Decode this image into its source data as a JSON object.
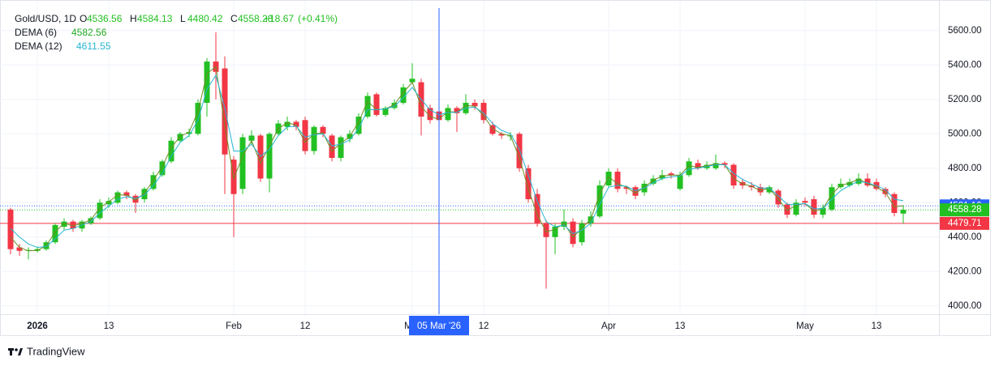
{
  "chart_data": {
    "type": "candlestick",
    "legend": {
      "title": "Gold/USD, 1D",
      "labels": [
        "O",
        "H",
        "L",
        "C"
      ],
      "change": {
        "value": 18.67,
        "label": "+18.67"
      },
      "change_pct": {
        "value": 0.41,
        "label": "(+0.41%)"
      }
    },
    "categories": [
      null,
      null,
      null,
      "2026",
      null,
      null,
      null,
      null,
      null,
      null,
      null,
      "13",
      null,
      null,
      null,
      null,
      null,
      null,
      null,
      null,
      null,
      null,
      null,
      null,
      null,
      "Feb",
      null,
      null,
      null,
      null,
      null,
      null,
      null,
      "12",
      null,
      null,
      null,
      null,
      null,
      null,
      null,
      null,
      null,
      null,
      null,
      "Mar",
      null,
      null,
      null,
      null,
      null,
      null,
      null,
      "12",
      null,
      null,
      null,
      null,
      null,
      null,
      null,
      null,
      null,
      null,
      null,
      null,
      null,
      "Apr",
      null,
      null,
      null,
      null,
      null,
      null,
      null,
      "13",
      null,
      null,
      null,
      null,
      null,
      null,
      null,
      null,
      null,
      null,
      null,
      null,
      null,
      "May",
      null,
      null,
      null,
      null,
      null,
      null,
      null,
      "13",
      null,
      null,
      null
    ],
    "series": [
      {
        "name": "Gold/USD",
        "up_color": "#22c022",
        "down_color": "#f23645",
        "open": [
          4560,
          4340,
          4320,
          4320,
          4330,
          4370,
          4460,
          4490,
          4450,
          4480,
          4510,
          4590,
          4600,
          4660,
          4640,
          4620,
          4680,
          4760,
          4840,
          4960,
          5000,
          5000,
          5180,
          5420,
          5380,
          4850,
          4680,
          4960,
          4990,
          4740,
          5000,
          5040,
          5070,
          5080,
          4900,
          5040,
          4990,
          4860,
          4970,
          5000,
          5100,
          5230,
          5110,
          5150,
          5180,
          5300,
          5300,
          5150,
          5130,
          5080,
          5150,
          5120,
          5180,
          5180,
          5050,
          5000,
          4990,
          5000,
          4800,
          4650,
          4480,
          4400,
          4460,
          4490,
          4370,
          4480,
          4520,
          4700,
          4780,
          4690,
          4690,
          4660,
          4710,
          4740,
          4770,
          4680,
          4760,
          4830,
          4800,
          4800,
          4830,
          4820,
          4720,
          4700,
          4690,
          4660,
          4670,
          4590,
          4530,
          4610,
          4620,
          4530,
          4560,
          4690,
          4700,
          4710,
          4740,
          4720,
          4680,
          4650,
          4536.56
        ],
        "high": [
          4570,
          4360,
          4340,
          4345,
          4380,
          4480,
          4510,
          4500,
          4500,
          4520,
          4620,
          4630,
          4670,
          4670,
          4650,
          4690,
          4780,
          4850,
          4980,
          5010,
          5030,
          5200,
          5440,
          5590,
          5450,
          4870,
          5000,
          5020,
          5000,
          5010,
          5080,
          5100,
          5080,
          5100,
          5050,
          5050,
          5000,
          4990,
          5020,
          5120,
          5240,
          5240,
          5160,
          5200,
          5290,
          5410,
          5320,
          5170,
          5150,
          5170,
          5160,
          5230,
          5200,
          5200,
          5070,
          5010,
          5010,
          5010,
          4820,
          4680,
          4500,
          4480,
          4560,
          4510,
          4500,
          4550,
          4730,
          4800,
          4800,
          4700,
          4700,
          4730,
          4760,
          4790,
          4780,
          4780,
          4860,
          4850,
          4840,
          4880,
          4840,
          4830,
          4740,
          4720,
          4710,
          4700,
          4680,
          4600,
          4620,
          4630,
          4640,
          4590,
          4710,
          4740,
          4740,
          4770,
          4770,
          4740,
          4690,
          4660,
          4584.13
        ],
        "low": [
          4300,
          4290,
          4270,
          4310,
          4320,
          4360,
          4440,
          4430,
          4430,
          4470,
          4500,
          4570,
          4590,
          4620,
          4540,
          4600,
          4670,
          4750,
          4830,
          4950,
          4980,
          4990,
          5100,
          5200,
          4650,
          4400,
          4650,
          4940,
          4720,
          4660,
          4990,
          5020,
          5020,
          4880,
          4880,
          4980,
          4840,
          4840,
          4950,
          4990,
          5090,
          5100,
          5100,
          5140,
          5170,
          5290,
          4990,
          5060,
          5060,
          5070,
          5010,
          5110,
          5140,
          5060,
          4990,
          4970,
          4960,
          4780,
          4600,
          4460,
          4100,
          4300,
          4440,
          4340,
          4350,
          4460,
          4510,
          4690,
          4660,
          4650,
          4620,
          4640,
          4700,
          4730,
          4740,
          4670,
          4750,
          4790,
          4790,
          4790,
          4800,
          4680,
          4680,
          4670,
          4640,
          4650,
          4570,
          4510,
          4520,
          4580,
          4510,
          4510,
          4550,
          4680,
          4690,
          4700,
          4690,
          4670,
          4630,
          4520,
          4480.42
        ],
        "close": [
          4330,
          4320,
          4325,
          4330,
          4370,
          4470,
          4490,
          4450,
          4490,
          4510,
          4600,
          4610,
          4660,
          4640,
          4600,
          4680,
          4760,
          4840,
          4960,
          5000,
          5010,
          5180,
          5420,
          5360,
          4880,
          4650,
          4980,
          4990,
          4740,
          5000,
          5060,
          5070,
          5040,
          4900,
          5040,
          5000,
          4860,
          4980,
          5000,
          5100,
          5220,
          5110,
          5150,
          5180,
          5270,
          5320,
          5100,
          5080,
          5080,
          5150,
          5120,
          5180,
          5160,
          5080,
          5000,
          4990,
          4990,
          4800,
          4620,
          4480,
          4400,
          4460,
          4490,
          4360,
          4480,
          4520,
          4700,
          4780,
          4680,
          4680,
          4640,
          4710,
          4740,
          4760,
          4760,
          4760,
          4840,
          4800,
          4820,
          4830,
          4820,
          4700,
          4700,
          4690,
          4660,
          4690,
          4590,
          4530,
          4600,
          4600,
          4530,
          4570,
          4690,
          4710,
          4720,
          4740,
          4700,
          4680,
          4650,
          4540,
          4558.28
        ]
      },
      {
        "name": "DEMA (6)",
        "type": "line",
        "color": "#6b8e23",
        "label_color": "#22a822",
        "values": [
          4400,
          4340,
          4320,
          4322,
          4350,
          4430,
          4480,
          4465,
          4480,
          4500,
          4570,
          4605,
          4645,
          4645,
          4615,
          4655,
          4730,
          4810,
          4920,
          4985,
          5010,
          5130,
          5350,
          5390,
          5050,
          4740,
          4870,
          4960,
          4830,
          4930,
          5030,
          5065,
          5050,
          4950,
          5000,
          5005,
          4900,
          4945,
          4985,
          5070,
          5190,
          5140,
          5145,
          5170,
          5240,
          5300,
          5160,
          5100,
          5085,
          5130,
          5125,
          5165,
          5160,
          5105,
          5030,
          5000,
          4990,
          4860,
          4680,
          4530,
          4430,
          4445,
          4480,
          4400,
          4450,
          4505,
          4650,
          4750,
          4710,
          4690,
          4655,
          4690,
          4730,
          4755,
          4760,
          4760,
          4815,
          4805,
          4815,
          4825,
          4820,
          4740,
          4710,
          4695,
          4670,
          4685,
          4620,
          4555,
          4585,
          4595,
          4550,
          4565,
          4650,
          4700,
          4715,
          4735,
          4712,
          4690,
          4660,
          4575,
          4582.56
        ]
      },
      {
        "name": "DEMA (12)",
        "type": "line",
        "color": "#26b5d0",
        "label_color": "#26b5d0",
        "values": [
          4450,
          4400,
          4360,
          4340,
          4345,
          4390,
          4440,
          4450,
          4470,
          4490,
          4540,
          4580,
          4620,
          4635,
          4625,
          4645,
          4700,
          4770,
          4870,
          4950,
          4990,
          5080,
          5260,
          5340,
          5150,
          4900,
          4900,
          4940,
          4870,
          4910,
          4990,
          5040,
          5045,
          4980,
          4995,
          5000,
          4930,
          4940,
          4965,
          5030,
          5140,
          5140,
          5145,
          5160,
          5210,
          5270,
          5200,
          5140,
          5110,
          5125,
          5125,
          5150,
          5155,
          5120,
          5060,
          5020,
          5000,
          4910,
          4760,
          4610,
          4490,
          4460,
          4470,
          4420,
          4440,
          4480,
          4590,
          4690,
          4700,
          4695,
          4670,
          4685,
          4715,
          4740,
          4750,
          4755,
          4795,
          4800,
          4810,
          4820,
          4820,
          4770,
          4735,
          4710,
          4685,
          4685,
          4640,
          4590,
          4590,
          4595,
          4565,
          4565,
          4620,
          4670,
          4700,
          4725,
          4715,
          4700,
          4675,
          4620,
          4611.55
        ]
      }
    ],
    "ylim": [
      3952,
      5773
    ],
    "yticks": [
      {
        "value": 4000,
        "label": "4000.00"
      },
      {
        "value": 4200,
        "label": "4200.00"
      },
      {
        "value": 4400,
        "label": "4400.00"
      },
      {
        "value": 4600,
        "label": "4600.00"
      },
      {
        "value": 4800,
        "label": "4800.00"
      },
      {
        "value": 5000,
        "label": "5000.00"
      },
      {
        "value": 5200,
        "label": "5200.00"
      },
      {
        "value": 5400,
        "label": "5400.00"
      },
      {
        "value": 5600,
        "label": "5600.00"
      }
    ],
    "grid": true,
    "price_lines": [
      {
        "value": 4581.16,
        "color": "#2962ff",
        "style": "dotted"
      },
      {
        "value": 4558.28,
        "color": "#22c022",
        "style": "dotted"
      },
      {
        "value": 4479.71,
        "color": "#f23645",
        "style": "solid"
      }
    ],
    "crosshair": {
      "category_index": 48,
      "label": "05 Mar '26",
      "color": "#2962ff"
    }
  },
  "footer": {
    "brand": "TradingView"
  }
}
